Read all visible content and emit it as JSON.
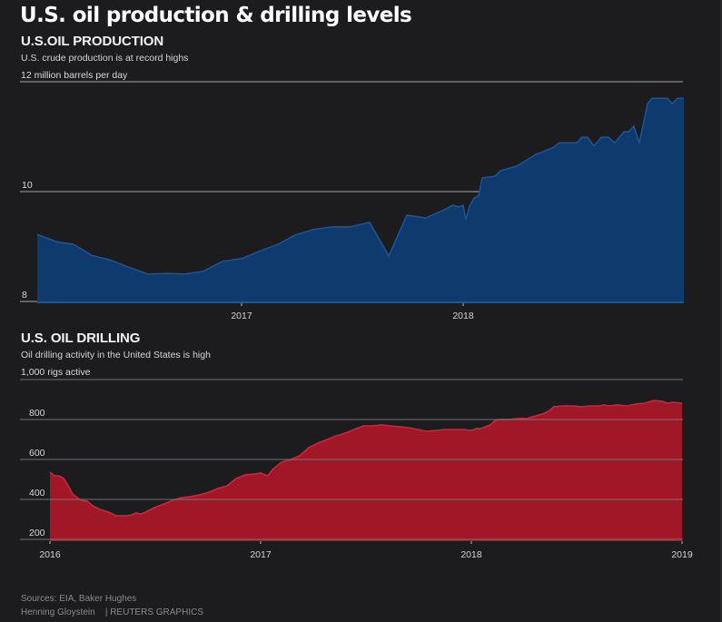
{
  "title": "U.S. oil production & drilling levels",
  "colors": {
    "background": "#1c1b1e",
    "production_fill": "#0e3a6e",
    "production_line": "#1a56a0",
    "drilling_fill": "#a01828",
    "drilling_line": "#d8203a",
    "gridline": "#7a7a7c"
  },
  "footer": {
    "sources": "Sources: EIA, Baker Hughes",
    "credit": "Henning Gloystein    | REUTERS GRAPHICS"
  },
  "chart_data": [
    {
      "type": "area",
      "title": "U.S.OIL PRODUCTION",
      "subtitle": "U.S. crude production is at record highs",
      "unit_label": "12 million barrels per day",
      "ylabel": "million barrels per day",
      "xlabel": "",
      "ylim": [
        8,
        12
      ],
      "xlim": [
        2016.0,
        2019.0
      ],
      "yticks": [
        8,
        10,
        12
      ],
      "ytick_labels": [
        "8",
        "10",
        "12 million barrels per day"
      ],
      "xticks": [
        2017,
        2018
      ],
      "xtick_labels": [
        "2017",
        "2018"
      ],
      "grid": true,
      "legend": "none",
      "series": [
        {
          "name": "U.S. crude production",
          "x": [
            2016.078,
            2016.164,
            2016.242,
            2016.324,
            2016.402,
            2016.488,
            2016.578,
            2016.664,
            2016.746,
            2016.828,
            2016.914,
            2017.0,
            2017.078,
            2017.164,
            2017.242,
            2017.324,
            2017.41,
            2017.492,
            2017.578,
            2017.664,
            2017.746,
            2017.832,
            2017.914,
            2017.955,
            2017.98,
            2018.0,
            2018.012,
            2018.029,
            2018.049,
            2018.07,
            2018.086,
            2018.143,
            2018.168,
            2018.238,
            2018.262,
            2018.328,
            2018.352,
            2018.41,
            2018.434,
            2018.512,
            2018.537,
            2018.561,
            2018.59,
            2018.623,
            2018.656,
            2018.684,
            2018.725,
            2018.746,
            2018.77,
            2018.795,
            2018.832,
            2018.852,
            2018.922,
            2018.943,
            2018.967,
            2018.996
          ],
          "values": [
            9.22,
            9.09,
            9.04,
            8.84,
            8.76,
            8.63,
            8.5,
            8.51,
            8.5,
            8.55,
            8.73,
            8.78,
            8.91,
            9.04,
            9.21,
            9.31,
            9.36,
            9.36,
            9.44,
            8.83,
            9.57,
            9.52,
            9.67,
            9.75,
            9.72,
            9.75,
            9.49,
            9.74,
            9.88,
            9.93,
            10.25,
            10.28,
            10.38,
            10.46,
            10.51,
            10.68,
            10.71,
            10.81,
            10.89,
            10.89,
            10.99,
            10.99,
            10.83,
            10.99,
            10.99,
            10.89,
            11.09,
            11.09,
            11.19,
            10.89,
            11.6,
            11.7,
            11.7,
            11.6,
            11.7,
            11.7
          ]
        }
      ]
    },
    {
      "type": "area",
      "title": "U.S. OIL DRILLING",
      "subtitle": "Oil drilling activity in the United States is high",
      "unit_label": "1,000  rigs active",
      "ylabel": "rigs active",
      "xlabel": "",
      "ylim": [
        200,
        1000
      ],
      "xlim": [
        2016.0,
        2019.0
      ],
      "yticks": [
        200,
        400,
        600,
        800,
        1000
      ],
      "ytick_labels": [
        "200",
        "400",
        "600",
        "800",
        "1,000  rigs active"
      ],
      "xticks": [
        2016,
        2017,
        2018,
        2019
      ],
      "xtick_labels": [
        "2016",
        "2017",
        "2018",
        "2019"
      ],
      "grid": true,
      "legend": "none",
      "series": [
        {
          "name": "U.S. oil rigs",
          "x": [
            2016.0,
            2016.022,
            2016.043,
            2016.065,
            2016.086,
            2016.108,
            2016.134,
            2016.151,
            2016.177,
            2016.203,
            2016.237,
            2016.28,
            2016.315,
            2016.345,
            2016.366,
            2016.388,
            2016.409,
            2016.431,
            2016.453,
            2016.496,
            2016.539,
            2016.582,
            2016.625,
            2016.668,
            2016.711,
            2016.754,
            2016.797,
            2016.841,
            2016.884,
            2016.927,
            2016.97,
            2017.0,
            2017.013,
            2017.034,
            2017.056,
            2017.099,
            2017.142,
            2017.185,
            2017.228,
            2017.272,
            2017.315,
            2017.358,
            2017.401,
            2017.444,
            2017.487,
            2017.53,
            2017.573,
            2017.616,
            2017.659,
            2017.703,
            2017.746,
            2017.789,
            2017.832,
            2017.875,
            2017.918,
            2017.961,
            2018.0,
            2018.026,
            2018.047,
            2018.09,
            2018.112,
            2018.134,
            2018.177,
            2018.22,
            2018.263,
            2018.306,
            2018.349,
            2018.371,
            2018.392,
            2018.435,
            2018.478,
            2018.522,
            2018.565,
            2018.608,
            2018.63,
            2018.651,
            2018.694,
            2018.737,
            2018.78,
            2018.823,
            2018.866,
            2018.909,
            2018.931,
            2018.957,
            2019.0
          ],
          "values": [
            536,
            518,
            518,
            505,
            468,
            427,
            405,
            395,
            391,
            368,
            350,
            336,
            318,
            318,
            318,
            323,
            332,
            327,
            336,
            359,
            377,
            395,
            409,
            414,
            423,
            436,
            455,
            468,
            505,
            523,
            527,
            532,
            527,
            518,
            550,
            586,
            600,
            618,
            659,
            682,
            700,
            718,
            732,
            750,
            768,
            768,
            773,
            768,
            764,
            759,
            750,
            741,
            745,
            750,
            750,
            750,
            745,
            755,
            755,
            773,
            795,
            800,
            800,
            805,
            805,
            818,
            832,
            845,
            864,
            868,
            868,
            864,
            868,
            868,
            873,
            868,
            873,
            868,
            877,
            882,
            895,
            891,
            882,
            886,
            882
          ]
        }
      ]
    }
  ]
}
